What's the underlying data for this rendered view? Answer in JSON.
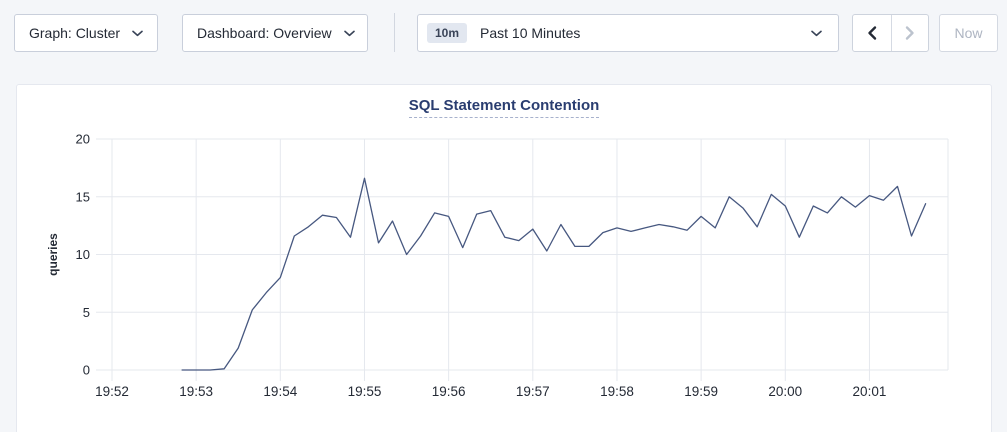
{
  "topbar": {
    "graph_dropdown": {
      "label": "Graph: Cluster"
    },
    "dashboard_dropdown": {
      "label": "Dashboard: Overview"
    },
    "time_selector": {
      "badge": "10m",
      "label": "Past 10 Minutes"
    },
    "back_button": {
      "state": "enabled"
    },
    "forward_button": {
      "state": "disabled"
    },
    "now_button": {
      "label": "Now",
      "state": "disabled"
    }
  },
  "icons": {
    "dropdown": "chevron-down-icon",
    "back": "chevron-left-icon",
    "forward": "chevron-right-icon"
  },
  "colors": {
    "page_bg": "#f4f6f9",
    "panel_bg": "#ffffff",
    "panel_border": "#e5e8ef",
    "button_border": "#c9cfdb",
    "title_navy": "#2a3d70",
    "text_dark": "#242a35",
    "disabled_text": "#aeb5c2"
  },
  "chart_data": {
    "type": "line",
    "title": "SQL Statement Contention",
    "ylabel": "queries",
    "xlabel": "",
    "ylim": [
      0,
      20
    ],
    "yticks": [
      0,
      5,
      10,
      15,
      20
    ],
    "xticks": [
      "19:52",
      "19:53",
      "19:54",
      "19:55",
      "19:56",
      "19:57",
      "19:58",
      "19:59",
      "20:00",
      "20:01"
    ],
    "x_start": "19:52:00",
    "x_end": "20:01:56",
    "grid": true,
    "legend": "none",
    "line_color": "#475880",
    "grid_color": "#e5e8ee",
    "tick_color": "#242a35",
    "series": [
      {
        "name": "queries",
        "points": [
          [
            "19:52:50",
            0
          ],
          [
            "19:53:00",
            0
          ],
          [
            "19:53:10",
            0
          ],
          [
            "19:53:20",
            0.1
          ],
          [
            "19:53:30",
            1.9
          ],
          [
            "19:53:40",
            5.2
          ],
          [
            "19:53:50",
            6.7
          ],
          [
            "19:54:00",
            8.0
          ],
          [
            "19:54:10",
            11.6
          ],
          [
            "19:54:20",
            12.4
          ],
          [
            "19:54:30",
            13.4
          ],
          [
            "19:54:40",
            13.2
          ],
          [
            "19:54:50",
            11.5
          ],
          [
            "19:55:00",
            16.6
          ],
          [
            "19:55:10",
            11.0
          ],
          [
            "19:55:20",
            12.9
          ],
          [
            "19:55:30",
            10.0
          ],
          [
            "19:55:40",
            11.6
          ],
          [
            "19:55:50",
            13.6
          ],
          [
            "19:56:00",
            13.3
          ],
          [
            "19:56:10",
            10.6
          ],
          [
            "19:56:20",
            13.5
          ],
          [
            "19:56:30",
            13.8
          ],
          [
            "19:56:40",
            11.5
          ],
          [
            "19:56:50",
            11.2
          ],
          [
            "19:57:00",
            12.2
          ],
          [
            "19:57:10",
            10.3
          ],
          [
            "19:57:20",
            12.6
          ],
          [
            "19:57:30",
            10.7
          ],
          [
            "19:57:40",
            10.7
          ],
          [
            "19:57:50",
            11.9
          ],
          [
            "19:58:00",
            12.3
          ],
          [
            "19:58:10",
            12.0
          ],
          [
            "19:58:20",
            12.3
          ],
          [
            "19:58:30",
            12.6
          ],
          [
            "19:58:40",
            12.4
          ],
          [
            "19:58:50",
            12.1
          ],
          [
            "19:59:00",
            13.3
          ],
          [
            "19:59:10",
            12.3
          ],
          [
            "19:59:20",
            15.0
          ],
          [
            "19:59:30",
            14.0
          ],
          [
            "19:59:40",
            12.4
          ],
          [
            "19:59:50",
            15.2
          ],
          [
            "20:00:00",
            14.2
          ],
          [
            "20:00:10",
            11.5
          ],
          [
            "20:00:20",
            14.2
          ],
          [
            "20:00:30",
            13.6
          ],
          [
            "20:00:40",
            15.0
          ],
          [
            "20:00:50",
            14.1
          ],
          [
            "20:01:00",
            15.1
          ],
          [
            "20:01:10",
            14.7
          ],
          [
            "20:01:20",
            15.9
          ],
          [
            "20:01:30",
            11.6
          ],
          [
            "20:01:40",
            14.4
          ]
        ]
      }
    ]
  }
}
